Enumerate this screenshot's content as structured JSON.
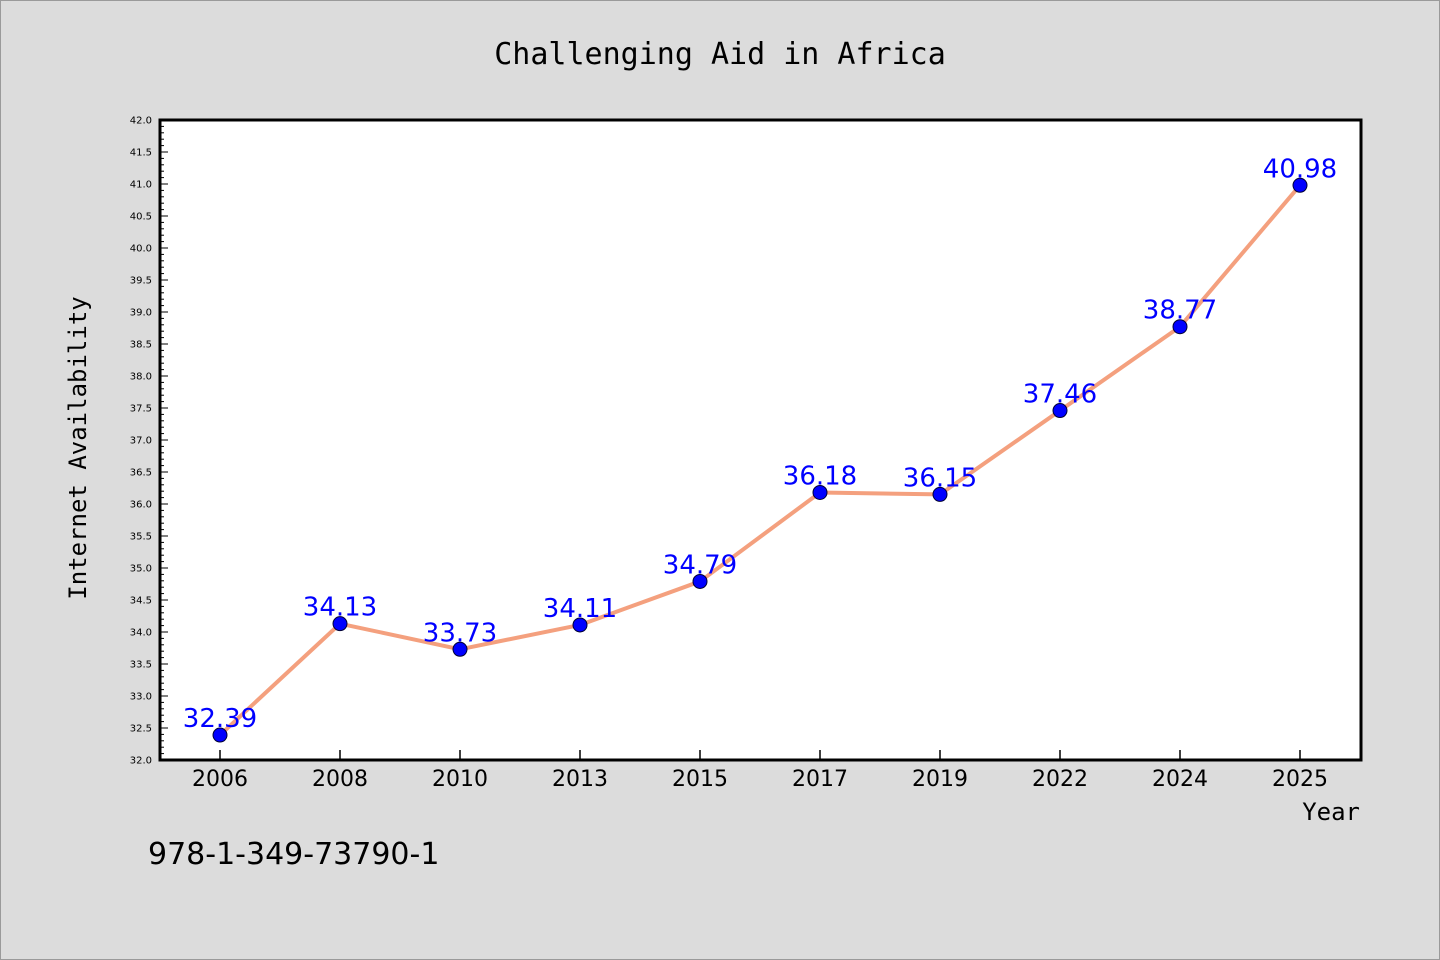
{
  "chart_data": {
    "type": "line",
    "title": "Challenging Aid in Africa",
    "xlabel": "Year",
    "ylabel": "Internet Availability",
    "categories": [
      "2006",
      "2008",
      "2010",
      "2013",
      "2015",
      "2017",
      "2019",
      "2022",
      "2024",
      "2025"
    ],
    "series": [
      {
        "values": [
          32.39,
          34.13,
          33.73,
          34.11,
          34.79,
          36.18,
          36.15,
          37.46,
          38.77,
          40.98
        ],
        "line_color": "#f4a07e",
        "marker_color": "#0000ff",
        "label_color": "#0000ff"
      }
    ],
    "ylim": [
      32.0,
      42.0
    ],
    "ytick_step": 0.5,
    "grid": false,
    "legend": "none"
  },
  "footer_text": "978-1-349-73790-1"
}
